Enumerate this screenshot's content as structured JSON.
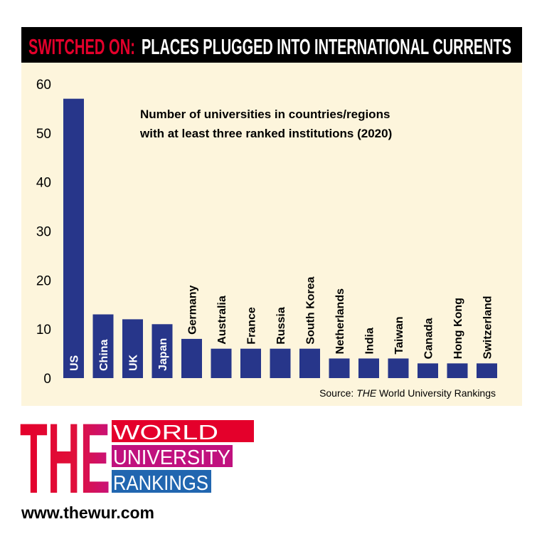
{
  "chart_data": {
    "type": "bar",
    "title_highlight": "SWITCHED ON:",
    "title": "PLACES PLUGGED INTO INTERNATIONAL CURRENTS",
    "annotation": [
      "Number of universities in countries/regions",
      "with at least three ranked institutions (2020)"
    ],
    "source": {
      "label": "Source:",
      "publisher": "THE",
      "name": "World University Rankings"
    },
    "categories": [
      "US",
      "China",
      "UK",
      "Japan",
      "Germany",
      "Australia",
      "France",
      "Russia",
      "South Korea",
      "Netherlands",
      "India",
      "Taiwan",
      "Canada",
      "Hong Kong",
      "Switzerland"
    ],
    "values": [
      57,
      13,
      12,
      11,
      8,
      6,
      6,
      6,
      6,
      4,
      4,
      4,
      3,
      3,
      3
    ],
    "color": "#27368a",
    "ylim": [
      0,
      60
    ],
    "yticks": [
      0,
      10,
      20,
      30,
      40,
      50,
      60
    ],
    "grid": false
  },
  "logo": {
    "mark": "THE",
    "lines": [
      "WORLD",
      "UNIVERSITY",
      "RANKINGS"
    ],
    "url": "www.thewur.com"
  }
}
